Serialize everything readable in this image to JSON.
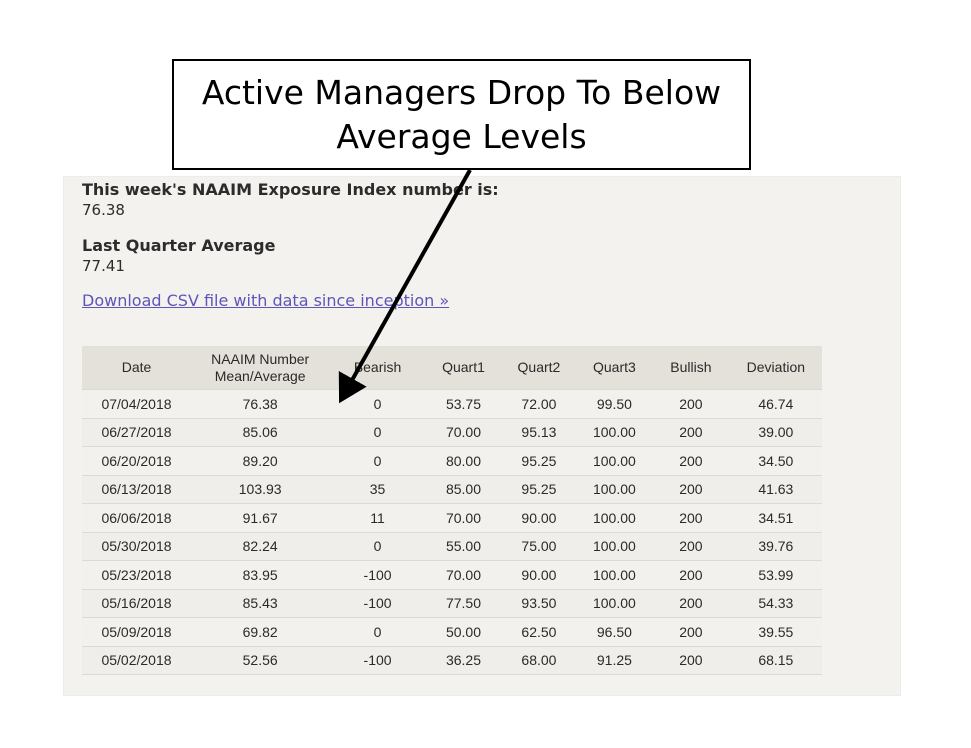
{
  "callout": {
    "line1": "Active Managers Drop To Below",
    "line2": "Average Levels"
  },
  "exposure": {
    "label": "This week's NAAIM Exposure Index number is:",
    "value": "76.38"
  },
  "quarter": {
    "label": "Last Quarter Average",
    "value": "77.41"
  },
  "csv_link": "Download CSV file with data since inception »",
  "table": {
    "headers": {
      "date": "Date",
      "naaim_line1": "NAAIM Number",
      "naaim_line2": "Mean/Average",
      "bearish": "Bearish",
      "quart1": "Quart1",
      "quart2": "Quart2",
      "quart3": "Quart3",
      "bullish": "Bullish",
      "deviation": "Deviation"
    },
    "rows": [
      {
        "date": "07/04/2018",
        "naaim": "76.38",
        "bearish": "0",
        "quart1": "53.75",
        "quart2": "72.00",
        "quart3": "99.50",
        "bullish": "200",
        "deviation": "46.74"
      },
      {
        "date": "06/27/2018",
        "naaim": "85.06",
        "bearish": "0",
        "quart1": "70.00",
        "quart2": "95.13",
        "quart3": "100.00",
        "bullish": "200",
        "deviation": "39.00"
      },
      {
        "date": "06/20/2018",
        "naaim": "89.20",
        "bearish": "0",
        "quart1": "80.00",
        "quart2": "95.25",
        "quart3": "100.00",
        "bullish": "200",
        "deviation": "34.50"
      },
      {
        "date": "06/13/2018",
        "naaim": "103.93",
        "bearish": "35",
        "quart1": "85.00",
        "quart2": "95.25",
        "quart3": "100.00",
        "bullish": "200",
        "deviation": "41.63"
      },
      {
        "date": "06/06/2018",
        "naaim": "91.67",
        "bearish": "11",
        "quart1": "70.00",
        "quart2": "90.00",
        "quart3": "100.00",
        "bullish": "200",
        "deviation": "34.51"
      },
      {
        "date": "05/30/2018",
        "naaim": "82.24",
        "bearish": "0",
        "quart1": "55.00",
        "quart2": "75.00",
        "quart3": "100.00",
        "bullish": "200",
        "deviation": "39.76"
      },
      {
        "date": "05/23/2018",
        "naaim": "83.95",
        "bearish": "-100",
        "quart1": "70.00",
        "quart2": "90.00",
        "quart3": "100.00",
        "bullish": "200",
        "deviation": "53.99"
      },
      {
        "date": "05/16/2018",
        "naaim": "85.43",
        "bearish": "-100",
        "quart1": "77.50",
        "quart2": "93.50",
        "quart3": "100.00",
        "bullish": "200",
        "deviation": "54.33"
      },
      {
        "date": "05/09/2018",
        "naaim": "69.82",
        "bearish": "0",
        "quart1": "50.00",
        "quart2": "62.50",
        "quart3": "96.50",
        "bullish": "200",
        "deviation": "39.55"
      },
      {
        "date": "05/02/2018",
        "naaim": "52.56",
        "bearish": "-100",
        "quart1": "36.25",
        "quart2": "68.00",
        "quart3": "91.25",
        "bullish": "200",
        "deviation": "68.15"
      }
    ]
  },
  "colors": {
    "link": "#5f55b8",
    "header_bg": "#e4e1da",
    "panel_bg": "#f3f2ef",
    "arrow": "#000000"
  },
  "icons": {
    "arrow": "arrow-pointer-icon"
  }
}
